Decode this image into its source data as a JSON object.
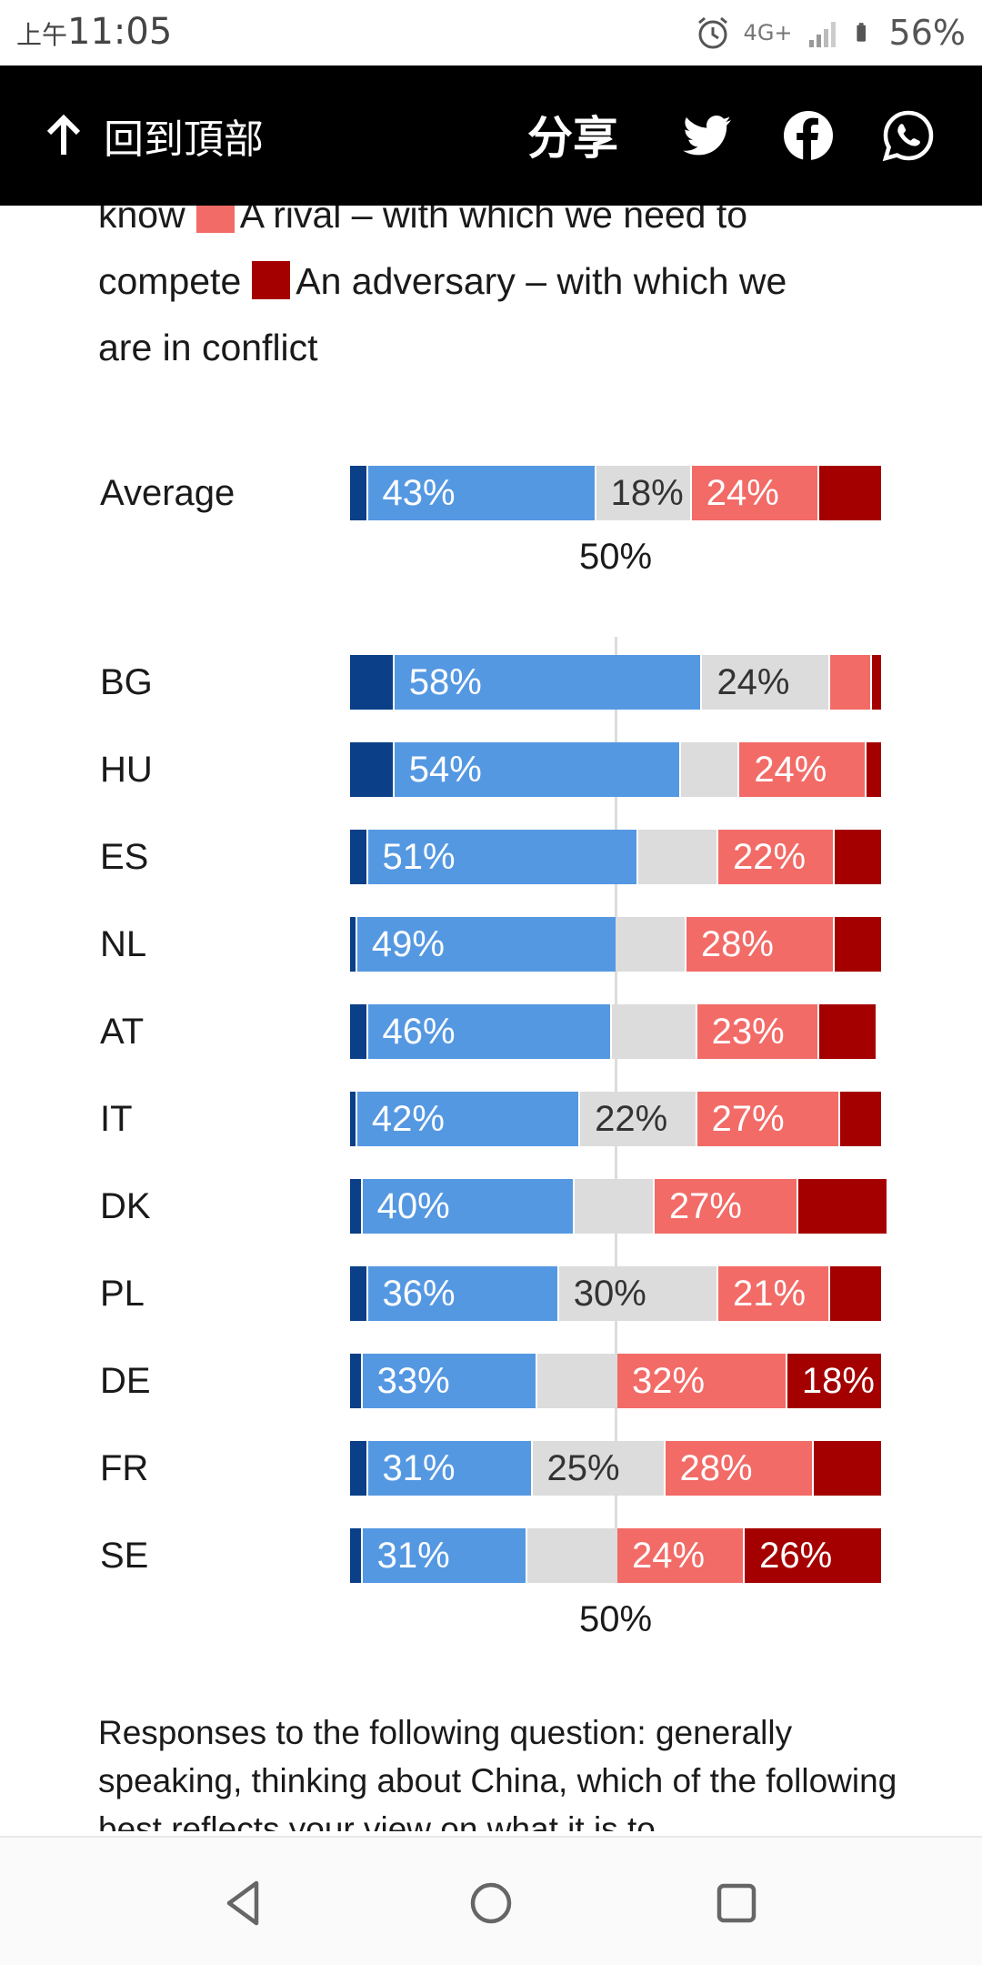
{
  "status_bar": {
    "ampm": "上午",
    "time": "11:05",
    "network": "4G+",
    "battery": "56%",
    "icons": [
      "alarm-icon",
      "signal-icon",
      "battery-icon"
    ]
  },
  "top_bar": {
    "back_label": "回到頂部",
    "share_label": "分享",
    "social": [
      "twitter-icon",
      "facebook-icon",
      "whatsapp-icon"
    ]
  },
  "intro": {
    "line1": "know",
    "rival_label": "A rival – with which we need to",
    "compete": "compete",
    "adversary_label": "An adversary – with which we",
    "line3": "are in conflict"
  },
  "colors": {
    "dark_blue": "#0b3f87",
    "blue": "#5598e2",
    "grey": "#dcdcdc",
    "light_red": "#f26b67",
    "dark_red": "#a50000"
  },
  "chart_data": {
    "type": "bar",
    "stacked": true,
    "orientation": "horizontal",
    "midline_label": "50%",
    "categories": [
      "Average",
      "BG",
      "HU",
      "ES",
      "NL",
      "AT",
      "IT",
      "DK",
      "PL",
      "DE",
      "FR",
      "SE"
    ],
    "series": [
      {
        "key": "dark_blue",
        "values": [
          3,
          8,
          8,
          3,
          1,
          3,
          1,
          2,
          3,
          2,
          3,
          2
        ]
      },
      {
        "key": "blue",
        "values": [
          43,
          58,
          54,
          51,
          49,
          46,
          42,
          40,
          36,
          33,
          31,
          31
        ]
      },
      {
        "key": "grey",
        "values": [
          18,
          24,
          11,
          15,
          13,
          16,
          22,
          15,
          30,
          15,
          25,
          17
        ]
      },
      {
        "key": "light_red",
        "values": [
          24,
          8,
          24,
          22,
          28,
          23,
          27,
          27,
          21,
          32,
          28,
          24
        ]
      },
      {
        "key": "dark_red",
        "values": [
          12,
          2,
          3,
          9,
          9,
          11,
          8,
          17,
          10,
          18,
          13,
          26
        ]
      }
    ],
    "labels": [
      [
        "",
        "43%",
        "18%",
        "24%",
        ""
      ],
      [
        "",
        "58%",
        "24%",
        "",
        ""
      ],
      [
        "",
        "54%",
        "",
        "24%",
        ""
      ],
      [
        "",
        "51%",
        "",
        "22%",
        ""
      ],
      [
        "",
        "49%",
        "",
        "28%",
        ""
      ],
      [
        "",
        "46%",
        "",
        "23%",
        ""
      ],
      [
        "",
        "42%",
        "22%",
        "27%",
        ""
      ],
      [
        "",
        "40%",
        "",
        "27%",
        ""
      ],
      [
        "",
        "36%",
        "30%",
        "21%",
        ""
      ],
      [
        "",
        "33%",
        "",
        "32%",
        "18%"
      ],
      [
        "",
        "31%",
        "25%",
        "28%",
        ""
      ],
      [
        "",
        "31%",
        "",
        "24%",
        "26%"
      ]
    ]
  },
  "footnote": "Responses to the following question: generally speaking, thinking about China, which of the following best reflects your view on what it is to",
  "nav": [
    "back-nav-icon",
    "home-nav-icon",
    "recents-nav-icon"
  ]
}
